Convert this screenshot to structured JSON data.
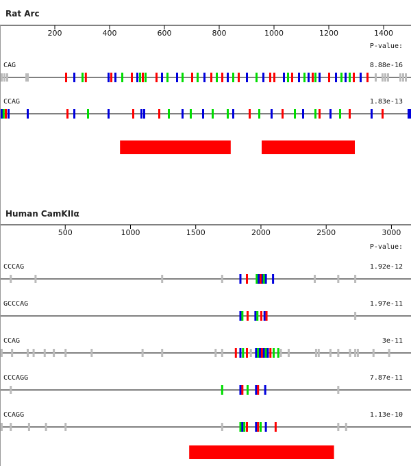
{
  "colors": {
    "line": "#000000",
    "red": "#ff0000",
    "green": "#00dd00",
    "blue": "#0000dd",
    "gray": "#bbbbbb",
    "bar": "#ff0000"
  },
  "panels": [
    {
      "id": "rat",
      "title": "Rat Arc",
      "x_max": 1500,
      "ticks": [
        200,
        400,
        600,
        800,
        1000,
        1200,
        1400
      ],
      "pvalue_header": "P-value:",
      "tracks": [
        {
          "name": "CAG",
          "pvalue": "8.88e-16",
          "marks": [
            {
              "x": 5,
              "c": "gray"
            },
            {
              "x": 15,
              "c": "gray"
            },
            {
              "x": 25,
              "c": "gray"
            },
            {
              "x": 95,
              "c": "gray"
            },
            {
              "x": 100,
              "c": "gray"
            },
            {
              "x": 240,
              "c": "red"
            },
            {
              "x": 270,
              "c": "blue"
            },
            {
              "x": 300,
              "c": "green"
            },
            {
              "x": 312,
              "c": "red"
            },
            {
              "x": 395,
              "c": "blue"
            },
            {
              "x": 405,
              "c": "red"
            },
            {
              "x": 420,
              "c": "blue"
            },
            {
              "x": 445,
              "c": "green"
            },
            {
              "x": 480,
              "c": "red"
            },
            {
              "x": 500,
              "c": "blue"
            },
            {
              "x": 510,
              "c": "green"
            },
            {
              "x": 520,
              "c": "red"
            },
            {
              "x": 530,
              "c": "green"
            },
            {
              "x": 570,
              "c": "red"
            },
            {
              "x": 590,
              "c": "blue"
            },
            {
              "x": 610,
              "c": "green"
            },
            {
              "x": 645,
              "c": "blue"
            },
            {
              "x": 665,
              "c": "green"
            },
            {
              "x": 700,
              "c": "red"
            },
            {
              "x": 720,
              "c": "green"
            },
            {
              "x": 745,
              "c": "blue"
            },
            {
              "x": 770,
              "c": "red"
            },
            {
              "x": 790,
              "c": "green"
            },
            {
              "x": 810,
              "c": "red"
            },
            {
              "x": 830,
              "c": "blue"
            },
            {
              "x": 850,
              "c": "green"
            },
            {
              "x": 870,
              "c": "red"
            },
            {
              "x": 900,
              "c": "blue"
            },
            {
              "x": 935,
              "c": "green"
            },
            {
              "x": 960,
              "c": "blue"
            },
            {
              "x": 985,
              "c": "red"
            },
            {
              "x": 1000,
              "c": "red"
            },
            {
              "x": 1035,
              "c": "blue"
            },
            {
              "x": 1050,
              "c": "green"
            },
            {
              "x": 1065,
              "c": "red"
            },
            {
              "x": 1090,
              "c": "blue"
            },
            {
              "x": 1110,
              "c": "green"
            },
            {
              "x": 1125,
              "c": "blue"
            },
            {
              "x": 1140,
              "c": "red"
            },
            {
              "x": 1150,
              "c": "green"
            },
            {
              "x": 1165,
              "c": "blue"
            },
            {
              "x": 1200,
              "c": "red"
            },
            {
              "x": 1225,
              "c": "blue"
            },
            {
              "x": 1245,
              "c": "green"
            },
            {
              "x": 1260,
              "c": "blue"
            },
            {
              "x": 1275,
              "c": "green"
            },
            {
              "x": 1290,
              "c": "red"
            },
            {
              "x": 1315,
              "c": "blue"
            },
            {
              "x": 1340,
              "c": "red"
            },
            {
              "x": 1370,
              "c": "gray"
            },
            {
              "x": 1395,
              "c": "gray"
            },
            {
              "x": 1405,
              "c": "gray"
            },
            {
              "x": 1415,
              "c": "gray"
            },
            {
              "x": 1460,
              "c": "gray"
            },
            {
              "x": 1470,
              "c": "gray"
            },
            {
              "x": 1480,
              "c": "gray"
            }
          ]
        },
        {
          "name": "CCAG",
          "pvalue": "1.83e-13",
          "marks": [
            {
              "x": 5,
              "c": "blue"
            },
            {
              "x": 12,
              "c": "green"
            },
            {
              "x": 20,
              "c": "red"
            },
            {
              "x": 30,
              "c": "blue"
            },
            {
              "x": 100,
              "c": "blue"
            },
            {
              "x": 245,
              "c": "red"
            },
            {
              "x": 270,
              "c": "blue"
            },
            {
              "x": 320,
              "c": "green"
            },
            {
              "x": 395,
              "c": "blue"
            },
            {
              "x": 485,
              "c": "red"
            },
            {
              "x": 515,
              "c": "blue"
            },
            {
              "x": 525,
              "c": "blue"
            },
            {
              "x": 580,
              "c": "red"
            },
            {
              "x": 615,
              "c": "green"
            },
            {
              "x": 665,
              "c": "blue"
            },
            {
              "x": 695,
              "c": "green"
            },
            {
              "x": 740,
              "c": "blue"
            },
            {
              "x": 775,
              "c": "green"
            },
            {
              "x": 830,
              "c": "green"
            },
            {
              "x": 850,
              "c": "blue"
            },
            {
              "x": 910,
              "c": "red"
            },
            {
              "x": 945,
              "c": "green"
            },
            {
              "x": 990,
              "c": "blue"
            },
            {
              "x": 1030,
              "c": "red"
            },
            {
              "x": 1075,
              "c": "green"
            },
            {
              "x": 1105,
              "c": "blue"
            },
            {
              "x": 1150,
              "c": "green"
            },
            {
              "x": 1165,
              "c": "red"
            },
            {
              "x": 1205,
              "c": "blue"
            },
            {
              "x": 1240,
              "c": "green"
            },
            {
              "x": 1275,
              "c": "red"
            },
            {
              "x": 1355,
              "c": "blue"
            },
            {
              "x": 1395,
              "c": "red"
            },
            {
              "x": 1490,
              "c": "blue"
            },
            {
              "x": 1495,
              "c": "blue"
            }
          ]
        }
      ],
      "bars": [
        {
          "start": 438,
          "end": 842
        },
        {
          "start": 955,
          "end": 1295
        }
      ]
    },
    {
      "id": "human",
      "title": "Human CamKIIα",
      "x_max": 3150,
      "ticks": [
        500,
        1000,
        1500,
        2000,
        2500,
        3000
      ],
      "pvalue_header": "P-value:",
      "tracks": [
        {
          "name": "CCCAG",
          "pvalue": "1.92e-12",
          "marks": [
            {
              "x": 80,
              "c": "gray"
            },
            {
              "x": 270,
              "c": "gray"
            },
            {
              "x": 1240,
              "c": "gray"
            },
            {
              "x": 1700,
              "c": "gray"
            },
            {
              "x": 1840,
              "c": "blue"
            },
            {
              "x": 1890,
              "c": "red"
            },
            {
              "x": 1965,
              "c": "green"
            },
            {
              "x": 1980,
              "c": "blue"
            },
            {
              "x": 1995,
              "c": "red"
            },
            {
              "x": 2010,
              "c": "blue"
            },
            {
              "x": 2020,
              "c": "green"
            },
            {
              "x": 2035,
              "c": "blue"
            },
            {
              "x": 2090,
              "c": "blue"
            },
            {
              "x": 2410,
              "c": "gray"
            },
            {
              "x": 2590,
              "c": "gray"
            },
            {
              "x": 2720,
              "c": "gray"
            }
          ]
        },
        {
          "name": "GCCCAG",
          "pvalue": "1.97e-11",
          "marks": [
            {
              "x": 1840,
              "c": "blue"
            },
            {
              "x": 1855,
              "c": "green"
            },
            {
              "x": 1895,
              "c": "red"
            },
            {
              "x": 1955,
              "c": "blue"
            },
            {
              "x": 1970,
              "c": "green"
            },
            {
              "x": 2000,
              "c": "red"
            },
            {
              "x": 2025,
              "c": "blue"
            },
            {
              "x": 2040,
              "c": "red"
            },
            {
              "x": 2720,
              "c": "gray"
            }
          ]
        },
        {
          "name": "CCAG",
          "pvalue": "3e-11",
          "marks": [
            {
              "x": 10,
              "c": "gray"
            },
            {
              "x": 90,
              "c": "gray"
            },
            {
              "x": 210,
              "c": "gray"
            },
            {
              "x": 255,
              "c": "gray"
            },
            {
              "x": 340,
              "c": "gray"
            },
            {
              "x": 410,
              "c": "gray"
            },
            {
              "x": 500,
              "c": "gray"
            },
            {
              "x": 700,
              "c": "gray"
            },
            {
              "x": 1090,
              "c": "gray"
            },
            {
              "x": 1240,
              "c": "gray"
            },
            {
              "x": 1650,
              "c": "gray"
            },
            {
              "x": 1700,
              "c": "gray"
            },
            {
              "x": 1805,
              "c": "red"
            },
            {
              "x": 1840,
              "c": "blue"
            },
            {
              "x": 1860,
              "c": "green"
            },
            {
              "x": 1890,
              "c": "red"
            },
            {
              "x": 1920,
              "c": "gray"
            },
            {
              "x": 1960,
              "c": "blue"
            },
            {
              "x": 1975,
              "c": "green"
            },
            {
              "x": 1990,
              "c": "blue"
            },
            {
              "x": 2005,
              "c": "red"
            },
            {
              "x": 2020,
              "c": "blue"
            },
            {
              "x": 2035,
              "c": "green"
            },
            {
              "x": 2050,
              "c": "blue"
            },
            {
              "x": 2070,
              "c": "red"
            },
            {
              "x": 2095,
              "c": "green"
            },
            {
              "x": 2130,
              "c": "green"
            },
            {
              "x": 2150,
              "c": "gray"
            },
            {
              "x": 2210,
              "c": "gray"
            },
            {
              "x": 2420,
              "c": "gray"
            },
            {
              "x": 2440,
              "c": "gray"
            },
            {
              "x": 2530,
              "c": "gray"
            },
            {
              "x": 2590,
              "c": "gray"
            },
            {
              "x": 2680,
              "c": "gray"
            },
            {
              "x": 2720,
              "c": "gray"
            },
            {
              "x": 2740,
              "c": "gray"
            },
            {
              "x": 2860,
              "c": "gray"
            },
            {
              "x": 2980,
              "c": "gray"
            }
          ]
        },
        {
          "name": "CCCAGG",
          "pvalue": "7.87e-11",
          "marks": [
            {
              "x": 80,
              "c": "gray"
            },
            {
              "x": 1700,
              "c": "green"
            },
            {
              "x": 1840,
              "c": "blue"
            },
            {
              "x": 1855,
              "c": "red"
            },
            {
              "x": 1895,
              "c": "green"
            },
            {
              "x": 1960,
              "c": "blue"
            },
            {
              "x": 1975,
              "c": "red"
            },
            {
              "x": 2030,
              "c": "blue"
            },
            {
              "x": 2590,
              "c": "gray"
            }
          ]
        },
        {
          "name": "CCAGG",
          "pvalue": "1.13e-10",
          "marks": [
            {
              "x": 10,
              "c": "gray"
            },
            {
              "x": 80,
              "c": "gray"
            },
            {
              "x": 220,
              "c": "gray"
            },
            {
              "x": 350,
              "c": "gray"
            },
            {
              "x": 500,
              "c": "gray"
            },
            {
              "x": 1700,
              "c": "gray"
            },
            {
              "x": 1840,
              "c": "green"
            },
            {
              "x": 1855,
              "c": "blue"
            },
            {
              "x": 1870,
              "c": "green"
            },
            {
              "x": 1890,
              "c": "red"
            },
            {
              "x": 1960,
              "c": "blue"
            },
            {
              "x": 1975,
              "c": "red"
            },
            {
              "x": 1995,
              "c": "green"
            },
            {
              "x": 2035,
              "c": "blue"
            },
            {
              "x": 2110,
              "c": "red"
            },
            {
              "x": 2590,
              "c": "gray"
            },
            {
              "x": 2650,
              "c": "gray"
            }
          ]
        }
      ],
      "bars": [
        {
          "start": 1450,
          "end": 2560
        }
      ]
    }
  ]
}
